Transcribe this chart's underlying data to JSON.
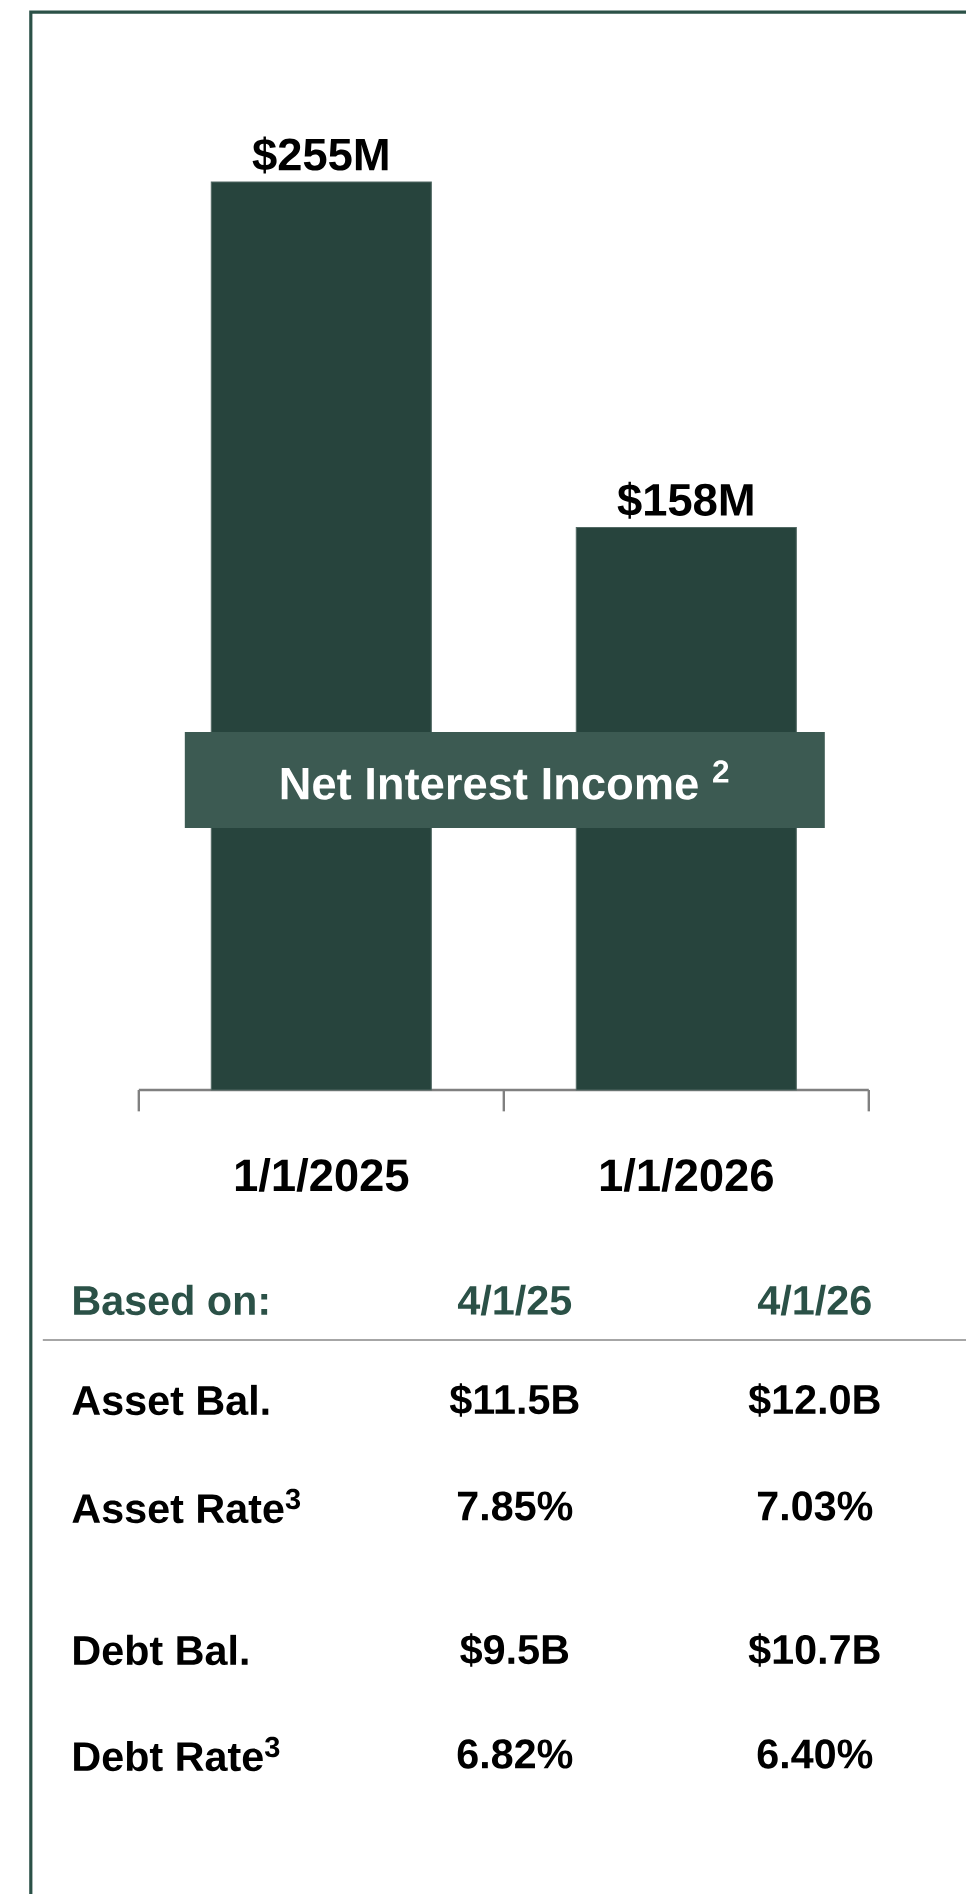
{
  "chart_data": {
    "type": "bar",
    "title": "Net Interest Income $^{2}$",
    "categories": [
      "1/1/2025",
      "1/1/2026"
    ],
    "values": [
      255,
      158
    ],
    "value_labels": [
      "$255M",
      "$158M"
    ],
    "color": "#27443d",
    "annotations": [
      "Based on:",
      "4/1/25",
      "4/1/26",
      "Asset Bal.",
      "$11.5B",
      "$12.0B",
      "Asset Rate$^{3}$",
      "7.85%",
      "7.03%",
      "Debt Bal.",
      "$9.5B",
      "$10.7B",
      "Debt Rate$^{3}$",
      "6.82%",
      "6.40%"
    ]
  }
}
